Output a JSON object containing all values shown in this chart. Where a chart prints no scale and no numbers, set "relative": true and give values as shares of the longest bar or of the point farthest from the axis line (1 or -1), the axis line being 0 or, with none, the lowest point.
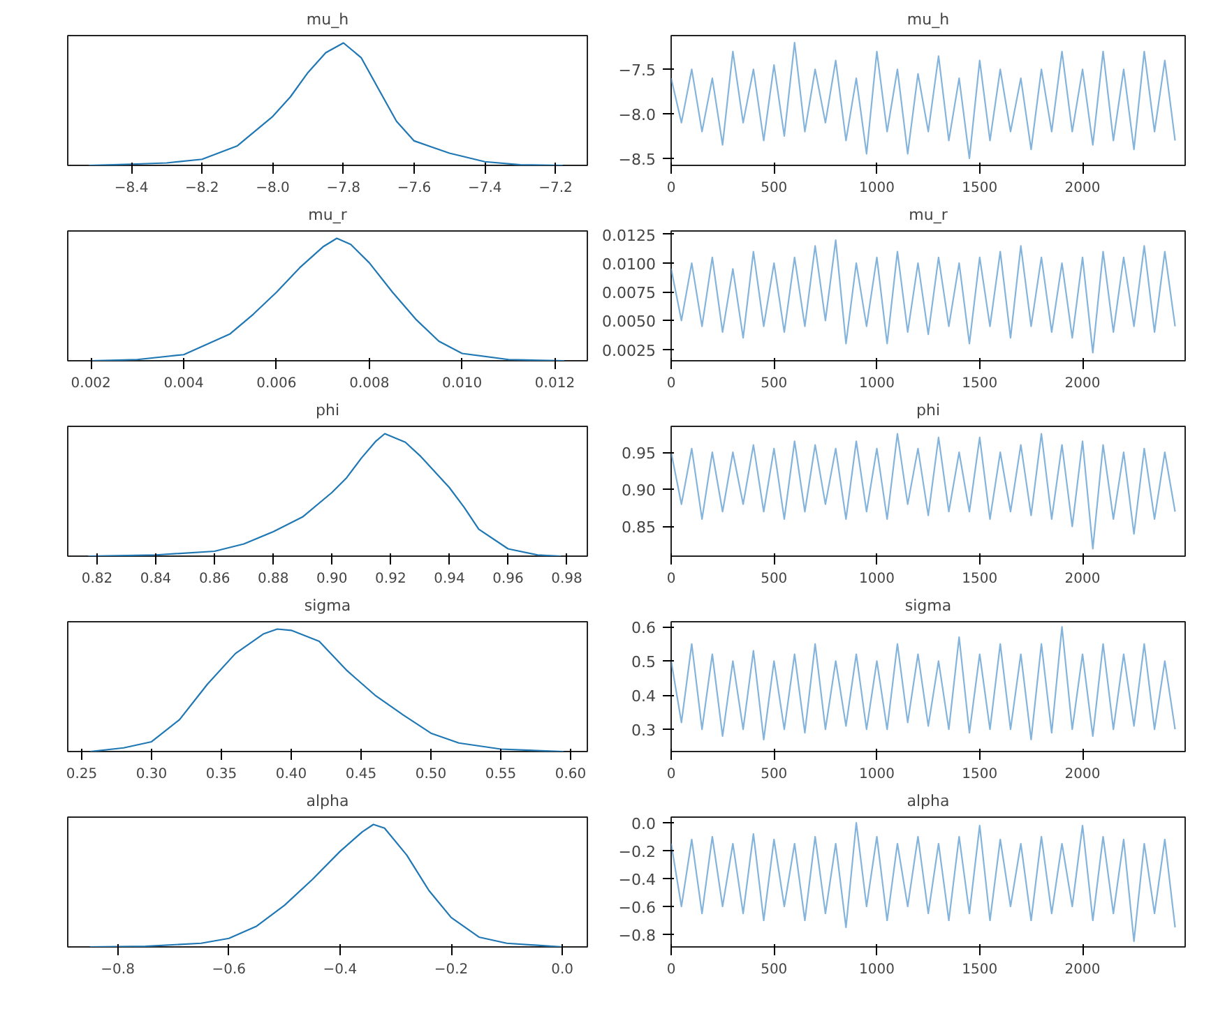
{
  "chart_data": [
    {
      "type": "line",
      "title": "mu_h",
      "relative": true,
      "tick_labels": "x",
      "xlim": [
        -8.58,
        -7.11
      ],
      "xticks": [
        {
          "value": -8.4,
          "label": "−8.4"
        },
        {
          "value": -8.2,
          "label": "−8.2"
        },
        {
          "value": -8.0,
          "label": "−8.0"
        },
        {
          "value": -7.8,
          "label": "−7.8"
        },
        {
          "value": -7.6,
          "label": "−7.6"
        },
        {
          "value": -7.4,
          "label": "−7.4"
        },
        {
          "value": -7.2,
          "label": "−7.2"
        }
      ],
      "series": [
        {
          "color": "#1f77b4",
          "x": [
            -8.52,
            -8.4,
            -8.3,
            -8.2,
            -8.1,
            -8.0,
            -7.95,
            -7.9,
            -7.85,
            -7.8,
            -7.75,
            -7.7,
            -7.65,
            -7.6,
            -7.55,
            -7.5,
            -7.4,
            -7.3,
            -7.18
          ],
          "values": [
            0,
            0.01,
            0.02,
            0.05,
            0.16,
            0.4,
            0.56,
            0.76,
            0.92,
            1.0,
            0.88,
            0.62,
            0.36,
            0.2,
            0.15,
            0.1,
            0.03,
            0.005,
            0
          ]
        }
      ]
    },
    {
      "type": "line",
      "title": "mu_h",
      "x": [
        0,
        50,
        100,
        150,
        200,
        250,
        300,
        350,
        400,
        450,
        500,
        550,
        600,
        650,
        700,
        750,
        800,
        850,
        900,
        950,
        1000,
        1050,
        1100,
        1150,
        1200,
        1250,
        1300,
        1350,
        1400,
        1450,
        1500,
        1550,
        1600,
        1650,
        1700,
        1750,
        1800,
        1850,
        1900,
        1950,
        2000,
        2050,
        2100,
        2150,
        2200,
        2250,
        2300,
        2350,
        2400,
        2450
      ],
      "xlim": [
        0,
        2499
      ],
      "xticks": [
        0,
        500,
        1000,
        1500,
        2000
      ],
      "ylim": [
        -8.58,
        -7.12
      ],
      "yticks": [
        {
          "value": -8.5,
          "label": "−8.5"
        },
        {
          "value": -8.0,
          "label": "−8.0"
        },
        {
          "value": -7.5,
          "label": "−7.5"
        }
      ],
      "series": [
        {
          "color": "#5b9bd0",
          "values": [
            -7.6,
            -8.1,
            -7.5,
            -8.2,
            -7.6,
            -8.35,
            -7.3,
            -8.1,
            -7.5,
            -8.3,
            -7.45,
            -8.25,
            -7.2,
            -8.2,
            -7.5,
            -8.1,
            -7.4,
            -8.3,
            -7.6,
            -8.45,
            -7.3,
            -8.2,
            -7.5,
            -8.45,
            -7.55,
            -8.2,
            -7.35,
            -8.3,
            -7.6,
            -8.5,
            -7.4,
            -8.3,
            -7.5,
            -8.2,
            -7.6,
            -8.4,
            -7.5,
            -8.2,
            -7.3,
            -8.2,
            -7.5,
            -8.35,
            -7.3,
            -8.3,
            -7.5,
            -8.4,
            -7.3,
            -8.2,
            -7.4,
            -8.3
          ]
        }
      ]
    },
    {
      "type": "line",
      "title": "mu_r",
      "relative": true,
      "tick_labels": "x",
      "xlim": [
        0.0015,
        0.0127
      ],
      "xticks": [
        {
          "value": 0.002,
          "label": "0.002"
        },
        {
          "value": 0.004,
          "label": "0.004"
        },
        {
          "value": 0.006,
          "label": "0.006"
        },
        {
          "value": 0.008,
          "label": "0.008"
        },
        {
          "value": 0.01,
          "label": "0.010"
        },
        {
          "value": 0.012,
          "label": "0.012"
        }
      ],
      "series": [
        {
          "color": "#1f77b4",
          "x": [
            0.002,
            0.003,
            0.004,
            0.005,
            0.0055,
            0.006,
            0.0065,
            0.007,
            0.0073,
            0.0076,
            0.008,
            0.0085,
            0.009,
            0.0095,
            0.01,
            0.011,
            0.0122
          ],
          "values": [
            0,
            0.01,
            0.05,
            0.22,
            0.38,
            0.56,
            0.76,
            0.93,
            1.0,
            0.95,
            0.8,
            0.56,
            0.34,
            0.16,
            0.06,
            0.01,
            0
          ]
        }
      ]
    },
    {
      "type": "line",
      "title": "mu_r",
      "x": [
        0,
        50,
        100,
        150,
        200,
        250,
        300,
        350,
        400,
        450,
        500,
        550,
        600,
        650,
        700,
        750,
        800,
        850,
        900,
        950,
        1000,
        1050,
        1100,
        1150,
        1200,
        1250,
        1300,
        1350,
        1400,
        1450,
        1500,
        1550,
        1600,
        1650,
        1700,
        1750,
        1800,
        1850,
        1900,
        1950,
        2000,
        2050,
        2100,
        2150,
        2200,
        2250,
        2300,
        2350,
        2400,
        2450
      ],
      "xlim": [
        0,
        2499
      ],
      "xticks": [
        0,
        500,
        1000,
        1500,
        2000
      ],
      "ylim": [
        0.0015,
        0.0128
      ],
      "yticks": [
        {
          "value": 0.0025,
          "label": "0.0025"
        },
        {
          "value": 0.005,
          "label": "0.0050"
        },
        {
          "value": 0.0075,
          "label": "0.0075"
        },
        {
          "value": 0.01,
          "label": "0.0100"
        },
        {
          "value": 0.0125,
          "label": "0.0125"
        }
      ],
      "series": [
        {
          "color": "#5b9bd0",
          "values": [
            0.0095,
            0.005,
            0.01,
            0.0045,
            0.0105,
            0.004,
            0.0095,
            0.0035,
            0.011,
            0.0045,
            0.01,
            0.004,
            0.0105,
            0.0045,
            0.0115,
            0.005,
            0.012,
            0.003,
            0.01,
            0.0045,
            0.0105,
            0.003,
            0.011,
            0.004,
            0.01,
            0.0038,
            0.0105,
            0.0045,
            0.01,
            0.003,
            0.0105,
            0.0045,
            0.011,
            0.0035,
            0.0115,
            0.0045,
            0.0105,
            0.004,
            0.01,
            0.0035,
            0.0105,
            0.0022,
            0.011,
            0.004,
            0.0105,
            0.0045,
            0.0115,
            0.004,
            0.011,
            0.0045
          ]
        }
      ]
    },
    {
      "type": "line",
      "title": "phi",
      "relative": true,
      "tick_labels": "x",
      "xlim": [
        0.81,
        0.987
      ],
      "xticks": [
        {
          "value": 0.82,
          "label": "0.82"
        },
        {
          "value": 0.84,
          "label": "0.84"
        },
        {
          "value": 0.86,
          "label": "0.86"
        },
        {
          "value": 0.88,
          "label": "0.88"
        },
        {
          "value": 0.9,
          "label": "0.90"
        },
        {
          "value": 0.92,
          "label": "0.92"
        },
        {
          "value": 0.94,
          "label": "0.94"
        },
        {
          "value": 0.96,
          "label": "0.96"
        },
        {
          "value": 0.98,
          "label": "0.98"
        }
      ],
      "series": [
        {
          "color": "#1f77b4",
          "x": [
            0.817,
            0.84,
            0.86,
            0.87,
            0.88,
            0.89,
            0.9,
            0.905,
            0.91,
            0.915,
            0.918,
            0.925,
            0.93,
            0.94,
            0.945,
            0.95,
            0.96,
            0.97,
            0.978
          ],
          "values": [
            0,
            0.01,
            0.04,
            0.1,
            0.2,
            0.32,
            0.52,
            0.64,
            0.8,
            0.94,
            1.0,
            0.93,
            0.82,
            0.56,
            0.4,
            0.22,
            0.06,
            0.01,
            0
          ]
        }
      ]
    },
    {
      "type": "line",
      "title": "phi",
      "x": [
        0,
        50,
        100,
        150,
        200,
        250,
        300,
        350,
        400,
        450,
        500,
        550,
        600,
        650,
        700,
        750,
        800,
        850,
        900,
        950,
        1000,
        1050,
        1100,
        1150,
        1200,
        1250,
        1300,
        1350,
        1400,
        1450,
        1500,
        1550,
        1600,
        1650,
        1700,
        1750,
        1800,
        1850,
        1900,
        1950,
        2000,
        2050,
        2100,
        2150,
        2200,
        2250,
        2300,
        2350,
        2400,
        2450
      ],
      "xlim": [
        0,
        2499
      ],
      "xticks": [
        0,
        500,
        1000,
        1500,
        2000
      ],
      "ylim": [
        0.81,
        0.985
      ],
      "yticks": [
        {
          "value": 0.85,
          "label": "0.85"
        },
        {
          "value": 0.9,
          "label": "0.90"
        },
        {
          "value": 0.95,
          "label": "0.95"
        }
      ],
      "series": [
        {
          "color": "#5b9bd0",
          "values": [
            0.95,
            0.88,
            0.955,
            0.86,
            0.95,
            0.87,
            0.95,
            0.88,
            0.96,
            0.87,
            0.955,
            0.86,
            0.965,
            0.87,
            0.96,
            0.88,
            0.955,
            0.86,
            0.965,
            0.87,
            0.955,
            0.86,
            0.975,
            0.88,
            0.955,
            0.865,
            0.97,
            0.87,
            0.95,
            0.87,
            0.97,
            0.86,
            0.95,
            0.87,
            0.96,
            0.865,
            0.975,
            0.86,
            0.96,
            0.85,
            0.965,
            0.82,
            0.96,
            0.86,
            0.95,
            0.84,
            0.955,
            0.86,
            0.95,
            0.87
          ]
        }
      ]
    },
    {
      "type": "line",
      "title": "sigma",
      "relative": true,
      "tick_labels": "x",
      "xlim": [
        0.24,
        0.612
      ],
      "xticks": [
        {
          "value": 0.25,
          "label": "0.25"
        },
        {
          "value": 0.3,
          "label": "0.30"
        },
        {
          "value": 0.35,
          "label": "0.35"
        },
        {
          "value": 0.4,
          "label": "0.40"
        },
        {
          "value": 0.45,
          "label": "0.45"
        },
        {
          "value": 0.5,
          "label": "0.50"
        },
        {
          "value": 0.55,
          "label": "0.55"
        },
        {
          "value": 0.6,
          "label": "0.60"
        }
      ],
      "series": [
        {
          "color": "#1f77b4",
          "x": [
            0.256,
            0.28,
            0.3,
            0.32,
            0.34,
            0.36,
            0.38,
            0.39,
            0.4,
            0.42,
            0.44,
            0.46,
            0.48,
            0.5,
            0.52,
            0.55,
            0.595
          ],
          "values": [
            0,
            0.03,
            0.08,
            0.26,
            0.55,
            0.8,
            0.96,
            1.0,
            0.99,
            0.9,
            0.66,
            0.46,
            0.3,
            0.15,
            0.07,
            0.02,
            0
          ]
        }
      ]
    },
    {
      "type": "line",
      "title": "sigma",
      "x": [
        0,
        50,
        100,
        150,
        200,
        250,
        300,
        350,
        400,
        450,
        500,
        550,
        600,
        650,
        700,
        750,
        800,
        850,
        900,
        950,
        1000,
        1050,
        1100,
        1150,
        1200,
        1250,
        1300,
        1350,
        1400,
        1450,
        1500,
        1550,
        1600,
        1650,
        1700,
        1750,
        1800,
        1850,
        1900,
        1950,
        2000,
        2050,
        2100,
        2150,
        2200,
        2250,
        2300,
        2350,
        2400,
        2450
      ],
      "xlim": [
        0,
        2499
      ],
      "xticks": [
        0,
        500,
        1000,
        1500,
        2000
      ],
      "ylim": [
        0.235,
        0.615
      ],
      "yticks": [
        {
          "value": 0.3,
          "label": "0.3"
        },
        {
          "value": 0.4,
          "label": "0.4"
        },
        {
          "value": 0.5,
          "label": "0.5"
        },
        {
          "value": 0.6,
          "label": "0.6"
        }
      ],
      "series": [
        {
          "color": "#5b9bd0",
          "values": [
            0.5,
            0.32,
            0.55,
            0.3,
            0.52,
            0.28,
            0.5,
            0.3,
            0.53,
            0.27,
            0.5,
            0.3,
            0.52,
            0.29,
            0.55,
            0.3,
            0.5,
            0.31,
            0.52,
            0.3,
            0.5,
            0.3,
            0.55,
            0.32,
            0.52,
            0.31,
            0.5,
            0.3,
            0.57,
            0.29,
            0.52,
            0.3,
            0.55,
            0.3,
            0.52,
            0.27,
            0.55,
            0.29,
            0.6,
            0.3,
            0.52,
            0.28,
            0.55,
            0.3,
            0.52,
            0.31,
            0.55,
            0.3,
            0.5,
            0.3
          ]
        }
      ]
    },
    {
      "type": "line",
      "title": "alpha",
      "relative": true,
      "tick_labels": "x",
      "xlim": [
        -0.89,
        0.045
      ],
      "xticks": [
        {
          "value": -0.8,
          "label": "−0.8"
        },
        {
          "value": -0.6,
          "label": "−0.6"
        },
        {
          "value": -0.4,
          "label": "−0.4"
        },
        {
          "value": -0.2,
          "label": "−0.2"
        },
        {
          "value": 0.0,
          "label": "0.0"
        }
      ],
      "series": [
        {
          "color": "#1f77b4",
          "x": [
            -0.85,
            -0.75,
            -0.65,
            -0.6,
            -0.55,
            -0.5,
            -0.45,
            -0.4,
            -0.36,
            -0.34,
            -0.32,
            -0.28,
            -0.24,
            -0.2,
            -0.15,
            -0.1,
            0.0
          ],
          "values": [
            0,
            0.005,
            0.03,
            0.07,
            0.17,
            0.34,
            0.55,
            0.78,
            0.94,
            1.0,
            0.97,
            0.75,
            0.46,
            0.24,
            0.08,
            0.03,
            0
          ]
        }
      ]
    },
    {
      "type": "line",
      "title": "alpha",
      "x": [
        0,
        50,
        100,
        150,
        200,
        250,
        300,
        350,
        400,
        450,
        500,
        550,
        600,
        650,
        700,
        750,
        800,
        850,
        900,
        950,
        1000,
        1050,
        1100,
        1150,
        1200,
        1250,
        1300,
        1350,
        1400,
        1450,
        1500,
        1550,
        1600,
        1650,
        1700,
        1750,
        1800,
        1850,
        1900,
        1950,
        2000,
        2050,
        2100,
        2150,
        2200,
        2250,
        2300,
        2350,
        2400,
        2450
      ],
      "xlim": [
        0,
        2499
      ],
      "xticks": [
        0,
        500,
        1000,
        1500,
        2000
      ],
      "ylim": [
        -0.89,
        0.04
      ],
      "yticks": [
        {
          "value": -0.8,
          "label": "−0.8"
        },
        {
          "value": -0.6,
          "label": "−0.6"
        },
        {
          "value": -0.4,
          "label": "−0.4"
        },
        {
          "value": -0.2,
          "label": "−0.2"
        },
        {
          "value": 0.0,
          "label": "0.0"
        }
      ],
      "series": [
        {
          "color": "#5b9bd0",
          "values": [
            -0.15,
            -0.6,
            -0.12,
            -0.65,
            -0.1,
            -0.6,
            -0.15,
            -0.65,
            -0.08,
            -0.7,
            -0.12,
            -0.6,
            -0.15,
            -0.7,
            -0.1,
            -0.65,
            -0.15,
            -0.75,
            0.0,
            -0.6,
            -0.1,
            -0.7,
            -0.15,
            -0.6,
            -0.1,
            -0.65,
            -0.15,
            -0.7,
            -0.1,
            -0.65,
            -0.02,
            -0.7,
            -0.12,
            -0.6,
            -0.15,
            -0.7,
            -0.1,
            -0.65,
            -0.15,
            -0.6,
            -0.02,
            -0.7,
            -0.1,
            -0.65,
            -0.12,
            -0.85,
            -0.15,
            -0.65,
            -0.12,
            -0.75
          ]
        }
      ]
    }
  ]
}
